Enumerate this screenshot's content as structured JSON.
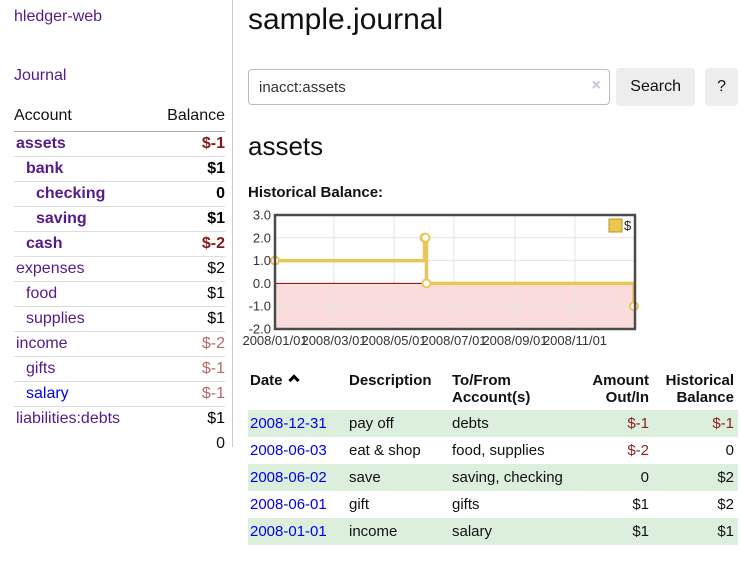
{
  "colors": {
    "link_purple": "#551A8B",
    "link_blue": "#0000EE",
    "negative_strong": "#861818",
    "negative_muted": "#b56a6a",
    "table_negative": "#8e2020",
    "row_green": "#dcefdc",
    "chart_line_gold": "#e9c659",
    "chart_legend_fill": "#eac84e",
    "chart_legend_border": "#b89530",
    "chart_negative_fill": "#fbdcdc",
    "chart_zero_line": "#8b0000",
    "chart_grid": "#e4e4e4",
    "chart_border": "#4a4a4a",
    "button_bg": "#ededed"
  },
  "sidebar": {
    "app_title": "hledger-web",
    "journal_link": "Journal",
    "table": {
      "account_header": "Account",
      "balance_header": "Balance"
    },
    "accounts": [
      {
        "name": "assets",
        "indent": 1,
        "bold": true,
        "balance": "$-1",
        "balance_style": "neg-strong",
        "link": "purple"
      },
      {
        "name": "bank",
        "indent": 2,
        "bold": true,
        "balance": "$1",
        "balance_style": "pos",
        "link": "purple"
      },
      {
        "name": "checking",
        "indent": 3,
        "bold": true,
        "balance": "0",
        "balance_style": "pos",
        "link": "purple"
      },
      {
        "name": "saving",
        "indent": 3,
        "bold": true,
        "balance": "$1",
        "balance_style": "pos",
        "link": "purple"
      },
      {
        "name": "cash",
        "indent": 2,
        "bold": true,
        "balance": "$-2",
        "balance_style": "neg-strong",
        "link": "purple"
      },
      {
        "name": "expenses",
        "indent": 1,
        "bold": false,
        "balance": "$2",
        "balance_style": "pos",
        "link": "purple"
      },
      {
        "name": "food",
        "indent": 2,
        "bold": false,
        "balance": "$1",
        "balance_style": "pos",
        "link": "purple"
      },
      {
        "name": "supplies",
        "indent": 2,
        "bold": false,
        "balance": "$1",
        "balance_style": "pos",
        "link": "purple"
      },
      {
        "name": "income",
        "indent": 1,
        "bold": false,
        "balance": "$-2",
        "balance_style": "neg-muted",
        "link": "purple"
      },
      {
        "name": "gifts",
        "indent": 2,
        "bold": false,
        "balance": "$-1",
        "balance_style": "neg-muted",
        "link": "purple"
      },
      {
        "name": "salary",
        "indent": 2,
        "bold": false,
        "balance": "$-1",
        "balance_style": "neg-muted",
        "link": "blue"
      },
      {
        "name": "liabilities:debts",
        "indent": 1,
        "bold": false,
        "balance": "$1",
        "balance_style": "pos",
        "link": "purple"
      }
    ],
    "total": "0"
  },
  "main": {
    "title": "sample.journal",
    "search": {
      "value": "inacct:assets",
      "clear_label": "×",
      "button_label": "Search",
      "help_label": "?"
    },
    "account_heading": "assets",
    "chart_label": "Historical Balance:"
  },
  "chart_data": {
    "type": "line",
    "title": "Historical Balance:",
    "x_domain": [
      "2008-01-01",
      "2009-01-01"
    ],
    "x_ticks": [
      "2008/01/01",
      "2008/03/01",
      "2008/05/01",
      "2008/07/01",
      "2008/09/01",
      "2008/11/01"
    ],
    "y_ticks": [
      "3.0",
      "2.0",
      "1.0",
      "0.0",
      "-1.0",
      "-2.0"
    ],
    "ylim": [
      -2,
      3
    ],
    "grid": true,
    "negative_region_shaded": true,
    "legend_position": "top-right",
    "legend": [
      {
        "label": "$"
      }
    ],
    "series": [
      {
        "name": "$",
        "step": true,
        "points": [
          {
            "date": "2008-01-01",
            "value": 1
          },
          {
            "date": "2008-06-01",
            "value": 2
          },
          {
            "date": "2008-06-02",
            "value": 2
          },
          {
            "date": "2008-06-03",
            "value": 0
          },
          {
            "date": "2008-12-31",
            "value": -1
          }
        ]
      }
    ]
  },
  "register": {
    "headers": {
      "date": "Date",
      "description": "Description",
      "account": "To/From Account(s)",
      "amount": "Amount Out/In",
      "balance": "Historical Balance"
    },
    "rows": [
      {
        "date": "2008-12-31",
        "description": "pay off",
        "account": "debts",
        "amount": "$-1",
        "amount_negative": true,
        "balance": "$-1",
        "balance_negative": true
      },
      {
        "date": "2008-06-03",
        "description": "eat & shop",
        "account": "food, supplies",
        "amount": "$-2",
        "amount_negative": true,
        "balance": "0",
        "balance_negative": false
      },
      {
        "date": "2008-06-02",
        "description": "save",
        "account": "saving, checking",
        "amount": "0",
        "amount_negative": false,
        "balance": "$2",
        "balance_negative": false
      },
      {
        "date": "2008-06-01",
        "description": "gift",
        "account": "gifts",
        "amount": "$1",
        "amount_negative": false,
        "balance": "$2",
        "balance_negative": false
      },
      {
        "date": "2008-01-01",
        "description": "income",
        "account": "salary",
        "amount": "$1",
        "amount_negative": false,
        "balance": "$1",
        "balance_negative": false
      }
    ]
  }
}
